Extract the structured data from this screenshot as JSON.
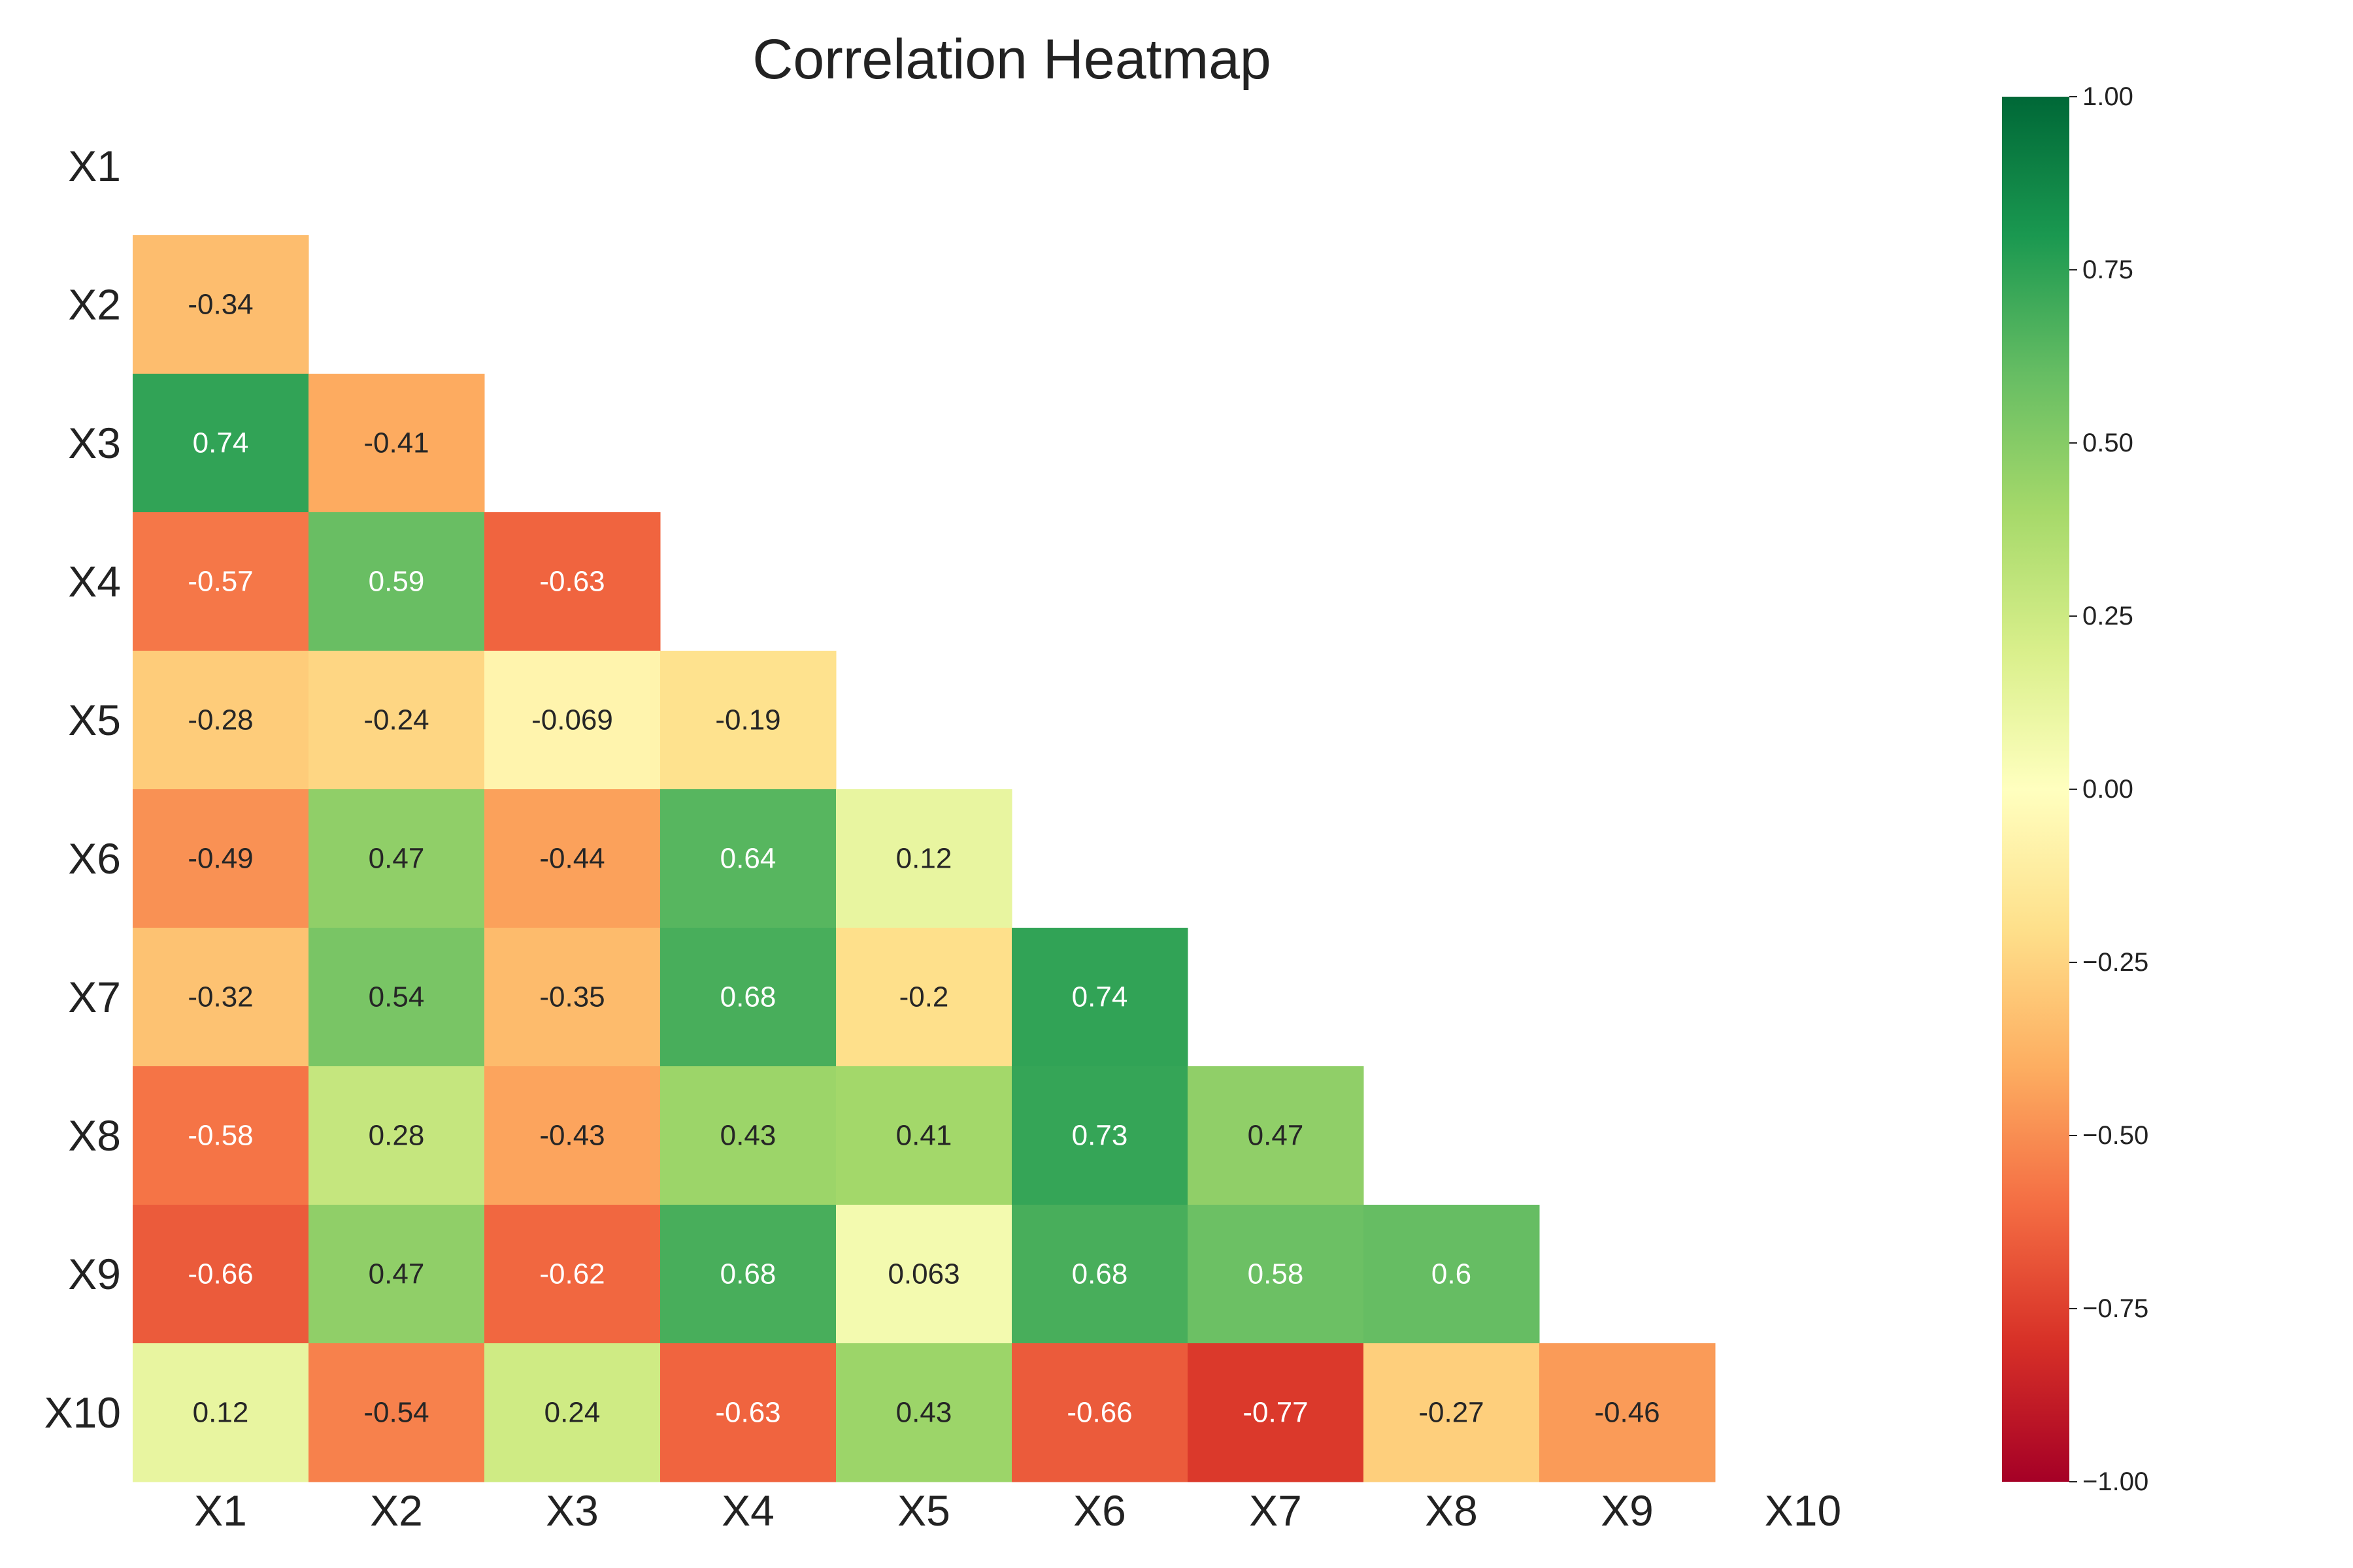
{
  "chart_data": {
    "type": "heatmap",
    "title": "Correlation Heatmap",
    "xlabel": "",
    "ylabel": "",
    "x_labels": [
      "X1",
      "X2",
      "X3",
      "X4",
      "X5",
      "X6",
      "X7",
      "X8",
      "X9",
      "X10"
    ],
    "y_labels": [
      "X1",
      "X2",
      "X3",
      "X4",
      "X5",
      "X6",
      "X7",
      "X8",
      "X9",
      "X10"
    ],
    "mask": "upper-triangle-including-diagonal",
    "colormap": "RdYlGn",
    "vmin": -1.0,
    "vmax": 1.0,
    "cells": [
      {
        "row": 2,
        "col": 1,
        "value": -0.34,
        "label": "-0.34"
      },
      {
        "row": 3,
        "col": 1,
        "value": 0.74,
        "label": "0.74"
      },
      {
        "row": 3,
        "col": 2,
        "value": -0.41,
        "label": "-0.41"
      },
      {
        "row": 4,
        "col": 1,
        "value": -0.57,
        "label": "-0.57"
      },
      {
        "row": 4,
        "col": 2,
        "value": 0.59,
        "label": "0.59"
      },
      {
        "row": 4,
        "col": 3,
        "value": -0.63,
        "label": "-0.63"
      },
      {
        "row": 5,
        "col": 1,
        "value": -0.28,
        "label": "-0.28"
      },
      {
        "row": 5,
        "col": 2,
        "value": -0.24,
        "label": "-0.24"
      },
      {
        "row": 5,
        "col": 3,
        "value": -0.069,
        "label": "-0.069"
      },
      {
        "row": 5,
        "col": 4,
        "value": -0.19,
        "label": "-0.19"
      },
      {
        "row": 6,
        "col": 1,
        "value": -0.49,
        "label": "-0.49"
      },
      {
        "row": 6,
        "col": 2,
        "value": 0.47,
        "label": "0.47"
      },
      {
        "row": 6,
        "col": 3,
        "value": -0.44,
        "label": "-0.44"
      },
      {
        "row": 6,
        "col": 4,
        "value": 0.64,
        "label": "0.64"
      },
      {
        "row": 6,
        "col": 5,
        "value": 0.12,
        "label": "0.12"
      },
      {
        "row": 7,
        "col": 1,
        "value": -0.32,
        "label": "-0.32"
      },
      {
        "row": 7,
        "col": 2,
        "value": 0.54,
        "label": "0.54"
      },
      {
        "row": 7,
        "col": 3,
        "value": -0.35,
        "label": "-0.35"
      },
      {
        "row": 7,
        "col": 4,
        "value": 0.68,
        "label": "0.68"
      },
      {
        "row": 7,
        "col": 5,
        "value": -0.2,
        "label": "-0.2"
      },
      {
        "row": 7,
        "col": 6,
        "value": 0.74,
        "label": "0.74"
      },
      {
        "row": 8,
        "col": 1,
        "value": -0.58,
        "label": "-0.58"
      },
      {
        "row": 8,
        "col": 2,
        "value": 0.28,
        "label": "0.28"
      },
      {
        "row": 8,
        "col": 3,
        "value": -0.43,
        "label": "-0.43"
      },
      {
        "row": 8,
        "col": 4,
        "value": 0.43,
        "label": "0.43"
      },
      {
        "row": 8,
        "col": 5,
        "value": 0.41,
        "label": "0.41"
      },
      {
        "row": 8,
        "col": 6,
        "value": 0.73,
        "label": "0.73"
      },
      {
        "row": 8,
        "col": 7,
        "value": 0.47,
        "label": "0.47"
      },
      {
        "row": 9,
        "col": 1,
        "value": -0.66,
        "label": "-0.66"
      },
      {
        "row": 9,
        "col": 2,
        "value": 0.47,
        "label": "0.47"
      },
      {
        "row": 9,
        "col": 3,
        "value": -0.62,
        "label": "-0.62"
      },
      {
        "row": 9,
        "col": 4,
        "value": 0.68,
        "label": "0.68"
      },
      {
        "row": 9,
        "col": 5,
        "value": 0.063,
        "label": "0.063"
      },
      {
        "row": 9,
        "col": 6,
        "value": 0.68,
        "label": "0.68"
      },
      {
        "row": 9,
        "col": 7,
        "value": 0.58,
        "label": "0.58"
      },
      {
        "row": 9,
        "col": 8,
        "value": 0.6,
        "label": "0.6"
      },
      {
        "row": 10,
        "col": 1,
        "value": 0.12,
        "label": "0.12"
      },
      {
        "row": 10,
        "col": 2,
        "value": -0.54,
        "label": "-0.54"
      },
      {
        "row": 10,
        "col": 3,
        "value": 0.24,
        "label": "0.24"
      },
      {
        "row": 10,
        "col": 4,
        "value": -0.63,
        "label": "-0.63"
      },
      {
        "row": 10,
        "col": 5,
        "value": 0.43,
        "label": "0.43"
      },
      {
        "row": 10,
        "col": 6,
        "value": -0.66,
        "label": "-0.66"
      },
      {
        "row": 10,
        "col": 7,
        "value": -0.77,
        "label": "-0.77"
      },
      {
        "row": 10,
        "col": 8,
        "value": -0.27,
        "label": "-0.27"
      },
      {
        "row": 10,
        "col": 9,
        "value": -0.46,
        "label": "-0.46"
      }
    ],
    "colorbar": {
      "ticks": [
        1.0,
        0.75,
        0.5,
        0.25,
        0.0,
        -0.25,
        -0.5,
        -0.75,
        -1.0
      ],
      "tick_labels": [
        "1.00",
        "0.75",
        "0.50",
        "0.25",
        "0.00",
        "−0.25",
        "−0.50",
        "−0.75",
        "−1.00"
      ]
    },
    "grid": false,
    "legend": "colorbar-right"
  }
}
